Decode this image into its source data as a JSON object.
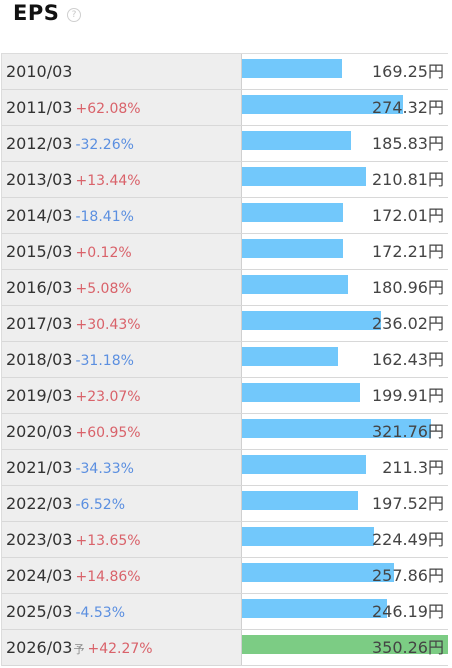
{
  "header": {
    "title": "EPS",
    "help_icon": "question-circle-icon"
  },
  "colors": {
    "actual_bar": "#72c8fb",
    "forecast_bar": "#7ccc84",
    "increase": "#d9626a",
    "decrease": "#5b8fe0"
  },
  "chart_data": {
    "type": "bar",
    "orientation": "horizontal",
    "title": "EPS",
    "unit": "円",
    "categories": [
      "2010/03",
      "2011/03",
      "2012/03",
      "2013/03",
      "2014/03",
      "2015/03",
      "2016/03",
      "2017/03",
      "2018/03",
      "2019/03",
      "2020/03",
      "2021/03",
      "2022/03",
      "2023/03",
      "2024/03",
      "2025/03",
      "2026/03"
    ],
    "rows": [
      {
        "period": "2010/03",
        "change": "",
        "value": 169.25,
        "value_label": "169.25円",
        "forecast": false
      },
      {
        "period": "2011/03",
        "change": "+62.08%",
        "value": 274.32,
        "value_label": "274.32円",
        "forecast": false
      },
      {
        "period": "2012/03",
        "change": "-32.26%",
        "value": 185.83,
        "value_label": "185.83円",
        "forecast": false
      },
      {
        "period": "2013/03",
        "change": "+13.44%",
        "value": 210.81,
        "value_label": "210.81円",
        "forecast": false
      },
      {
        "period": "2014/03",
        "change": "-18.41%",
        "value": 172.01,
        "value_label": "172.01円",
        "forecast": false
      },
      {
        "period": "2015/03",
        "change": "+0.12%",
        "value": 172.21,
        "value_label": "172.21円",
        "forecast": false
      },
      {
        "period": "2016/03",
        "change": "+5.08%",
        "value": 180.96,
        "value_label": "180.96円",
        "forecast": false
      },
      {
        "period": "2017/03",
        "change": "+30.43%",
        "value": 236.02,
        "value_label": "236.02円",
        "forecast": false
      },
      {
        "period": "2018/03",
        "change": "-31.18%",
        "value": 162.43,
        "value_label": "162.43円",
        "forecast": false
      },
      {
        "period": "2019/03",
        "change": "+23.07%",
        "value": 199.91,
        "value_label": "199.91円",
        "forecast": false
      },
      {
        "period": "2020/03",
        "change": "+60.95%",
        "value": 321.76,
        "value_label": "321.76円",
        "forecast": false
      },
      {
        "period": "2021/03",
        "change": "-34.33%",
        "value": 211.3,
        "value_label": "211.3円",
        "forecast": false
      },
      {
        "period": "2022/03",
        "change": "-6.52%",
        "value": 197.52,
        "value_label": "197.52円",
        "forecast": false
      },
      {
        "period": "2023/03",
        "change": "+13.65%",
        "value": 224.49,
        "value_label": "224.49円",
        "forecast": false
      },
      {
        "period": "2024/03",
        "change": "+14.86%",
        "value": 257.86,
        "value_label": "257.86円",
        "forecast": false
      },
      {
        "period": "2025/03",
        "change": "-4.53%",
        "value": 246.19,
        "value_label": "246.19円",
        "forecast": false
      },
      {
        "period": "2026/03",
        "forecast_mark": "予",
        "change": "+42.27%",
        "value": 350.26,
        "value_label": "350.26円",
        "forecast": true
      }
    ],
    "xlim": [
      0,
      350.26
    ],
    "grid": false,
    "legend": "none"
  }
}
